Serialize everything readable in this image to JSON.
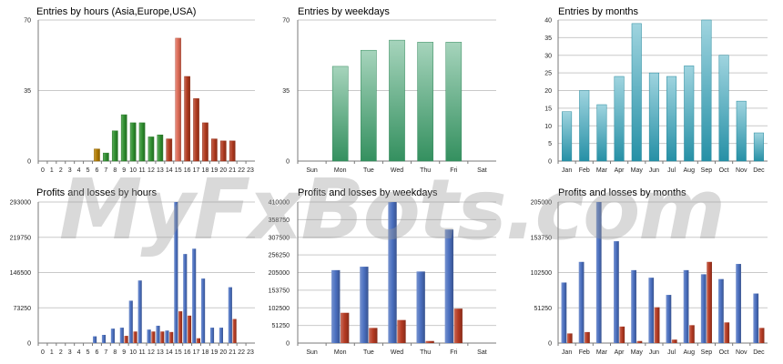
{
  "watermark": "MyFxBots.com",
  "colors": {
    "hour_orange": "#b07a00",
    "hour_green": "#2f8f2f",
    "hour_red": "#b03a1f",
    "hour_salmon": "#dc6a55",
    "weekday_green": "#3aa06a",
    "month_teal": "#2aa0b8",
    "profit_blue": "#4a6fbf",
    "loss_red": "#b43a22"
  },
  "chart_data": [
    {
      "type": "bar",
      "title": "Entries by hours (Asia,Europe,USA)",
      "categories": [
        "0",
        "1",
        "2",
        "3",
        "4",
        "5",
        "6",
        "7",
        "8",
        "9",
        "10",
        "11",
        "12",
        "13",
        "14",
        "15",
        "16",
        "17",
        "18",
        "19",
        "20",
        "21",
        "22",
        "23"
      ],
      "values": [
        0,
        0,
        0,
        0,
        0,
        0,
        6,
        4,
        15,
        23,
        19,
        19,
        12,
        13,
        11,
        61,
        42,
        31,
        19,
        11,
        10,
        10,
        0,
        0
      ],
      "bar_colors": [
        "orange",
        "orange",
        "orange",
        "orange",
        "orange",
        "orange",
        "orange",
        "green",
        "green",
        "green",
        "green",
        "green",
        "green",
        "green",
        "red",
        "salmon",
        "red",
        "red",
        "red",
        "red",
        "red",
        "red",
        "red",
        "red"
      ],
      "ylim": [
        0,
        70
      ],
      "yticks": [
        "0",
        "35",
        "70"
      ]
    },
    {
      "type": "bar",
      "title": "Entries by weekdays",
      "categories": [
        "Sun",
        "Mon",
        "Tue",
        "Wed",
        "Thu",
        "Fri",
        "Sat"
      ],
      "values": [
        0,
        47,
        55,
        60,
        59,
        59,
        0
      ],
      "ylim": [
        0,
        70
      ],
      "yticks": [
        "0",
        "35",
        "70"
      ]
    },
    {
      "type": "bar",
      "title": "Entries by months",
      "categories": [
        "Jan",
        "Feb",
        "Mar",
        "Apr",
        "May",
        "Jun",
        "Jul",
        "Aug",
        "Sep",
        "Oct",
        "Nov",
        "Dec"
      ],
      "values": [
        14,
        20,
        16,
        24,
        39,
        25,
        24,
        27,
        40,
        30,
        17,
        8
      ],
      "ylim": [
        0,
        40
      ],
      "yticks": [
        "0",
        "5",
        "10",
        "15",
        "20",
        "25",
        "30",
        "35",
        "40"
      ]
    },
    {
      "type": "bar",
      "title": "Profits and losses by hours",
      "categories": [
        "0",
        "1",
        "2",
        "3",
        "4",
        "5",
        "6",
        "7",
        "8",
        "9",
        "10",
        "11",
        "12",
        "13",
        "14",
        "15",
        "16",
        "17",
        "18",
        "19",
        "20",
        "21",
        "22",
        "23"
      ],
      "series": [
        {
          "values": [
            0,
            0,
            0,
            0,
            0,
            0,
            14000,
            17000,
            30000,
            32000,
            88000,
            130000,
            28000,
            36000,
            26000,
            293000,
            185000,
            196000,
            134000,
            32000,
            32000,
            116000,
            0,
            0
          ]
        },
        {
          "values": [
            0,
            0,
            0,
            0,
            0,
            0,
            0,
            0,
            0,
            15000,
            24000,
            0,
            24000,
            24000,
            23000,
            66000,
            57000,
            10000,
            0,
            0,
            0,
            50000,
            0,
            0
          ]
        }
      ],
      "ylim": [
        0,
        293000
      ],
      "yticks": [
        "0",
        "73250",
        "146500",
        "219750",
        "293000"
      ]
    },
    {
      "type": "bar",
      "title": "Profits and losses by weekdays",
      "categories": [
        "Sun",
        "Mon",
        "Tue",
        "Wed",
        "Thu",
        "Fri",
        "Sat"
      ],
      "series": [
        {
          "values": [
            0,
            212000,
            222000,
            410000,
            208000,
            330000,
            0
          ]
        },
        {
          "values": [
            0,
            88000,
            44000,
            67000,
            6000,
            100000,
            0
          ]
        }
      ],
      "ylim": [
        0,
        410000
      ],
      "yticks": [
        "0",
        "51250",
        "102500",
        "153750",
        "205000",
        "256250",
        "307500",
        "358750",
        "410000"
      ]
    },
    {
      "type": "bar",
      "title": "Profits and losses by months",
      "categories": [
        "Jan",
        "Feb",
        "Mar",
        "Apr",
        "May",
        "Jun",
        "Jul",
        "Aug",
        "Sep",
        "Oct",
        "Nov",
        "Dec"
      ],
      "series": [
        {
          "values": [
            88000,
            118000,
            205000,
            148000,
            106000,
            95000,
            70000,
            106000,
            100000,
            93000,
            115000,
            72000
          ]
        },
        {
          "values": [
            14000,
            16000,
            0,
            24000,
            3000,
            52000,
            5000,
            26000,
            118000,
            30000,
            0,
            22000
          ]
        }
      ],
      "ylim": [
        0,
        205000
      ],
      "yticks": [
        "0",
        "51250",
        "102500",
        "153750",
        "205000"
      ]
    }
  ]
}
